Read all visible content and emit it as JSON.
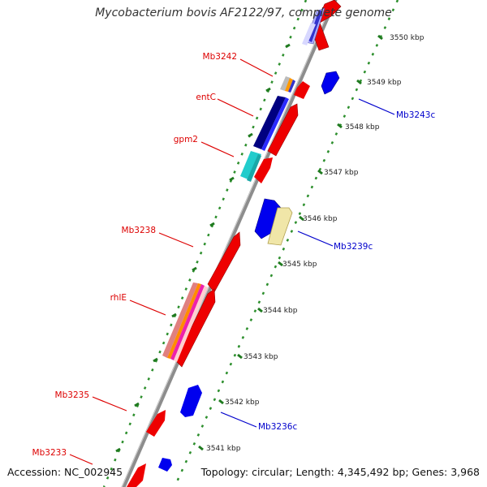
{
  "title": "Mycobacterium bovis AF2122/97, complete genome",
  "footer": {
    "accession": "Accession: NC_002945",
    "summary": "Topology: circular; Length: 4,345,492 bp; Genes: 3,968"
  },
  "colors": {
    "backbone": "#8a8a8a",
    "tick": "#2a8a2a",
    "forward_label": "#dd0000",
    "reverse_label": "#0000cc",
    "scale_label": "#222222"
  },
  "scale_labels": [
    "3550 kbp",
    "3549 kbp",
    "3548 kbp",
    "3547 kbp",
    "3546 kbp",
    "3545 kbp",
    "3544 kbp",
    "3543 kbp",
    "3542 kbp",
    "3541 kbp"
  ],
  "gene_labels": [
    {
      "text": "Mb3242",
      "strand": "forward"
    },
    {
      "text": "entC",
      "strand": "forward"
    },
    {
      "text": "gpm2",
      "strand": "forward"
    },
    {
      "text": "Mb3238",
      "strand": "forward"
    },
    {
      "text": "rhlE",
      "strand": "forward"
    },
    {
      "text": "Mb3235",
      "strand": "forward"
    },
    {
      "text": "Mb3233",
      "strand": "forward"
    },
    {
      "text": "Mb3243c",
      "strand": "reverse"
    },
    {
      "text": "Mb3239c",
      "strand": "reverse"
    },
    {
      "text": "Mb3236c",
      "strand": "reverse"
    }
  ]
}
